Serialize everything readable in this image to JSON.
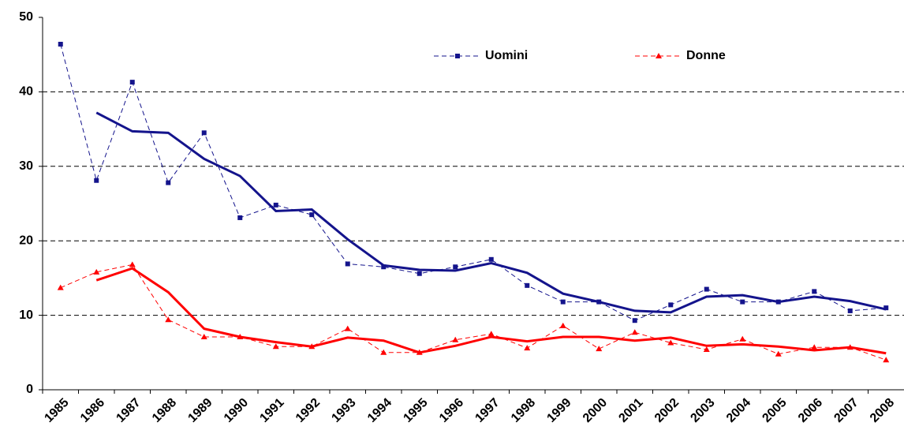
{
  "chart_data": {
    "type": "line",
    "categories": [
      "1985",
      "1986",
      "1987",
      "1988",
      "1989",
      "1990",
      "1991",
      "1992",
      "1993",
      "1994",
      "1995",
      "1996",
      "1997",
      "1998",
      "1999",
      "2000",
      "2001",
      "2002",
      "2003",
      "2004",
      "2005",
      "2006",
      "2007",
      "2008"
    ],
    "series": [
      {
        "name": "Uomini",
        "color": "#14148c",
        "marker": "square",
        "line_style": "dashed",
        "values": [
          46.4,
          28.1,
          41.3,
          27.8,
          34.5,
          23.1,
          24.8,
          23.5,
          16.9,
          16.5,
          15.6,
          16.5,
          17.5,
          14.0,
          11.8,
          11.8,
          9.3,
          11.4,
          13.5,
          11.8,
          11.8,
          13.2,
          10.6,
          11.0
        ]
      },
      {
        "name": "Donne",
        "color": "#ff0000",
        "marker": "triangle",
        "line_style": "dashed",
        "values": [
          13.7,
          15.8,
          16.8,
          9.4,
          7.1,
          7.1,
          5.8,
          5.8,
          8.2,
          5.0,
          5.0,
          6.7,
          7.5,
          5.6,
          8.6,
          5.5,
          7.7,
          6.3,
          5.4,
          6.8,
          4.8,
          5.7,
          5.7,
          4.0
        ]
      },
      {
        "color": "#14148c",
        "line_style": "solid",
        "values": [
          null,
          37.2,
          34.7,
          34.5,
          31.0,
          28.7,
          24.0,
          24.2,
          20.2,
          16.7,
          16.1,
          16.0,
          17.0,
          15.7,
          12.9,
          11.8,
          10.6,
          10.4,
          12.5,
          12.7,
          11.8,
          12.5,
          11.9,
          10.8
        ]
      },
      {
        "color": "#ff0000",
        "line_style": "solid",
        "values": [
          null,
          14.7,
          16.3,
          13.1,
          8.2,
          7.1,
          6.4,
          5.8,
          7.0,
          6.6,
          5.0,
          5.9,
          7.1,
          6.5,
          7.1,
          7.1,
          6.6,
          7.0,
          5.9,
          6.1,
          5.8,
          5.3,
          5.7,
          4.9
        ]
      }
    ],
    "ylim": [
      0,
      50
    ],
    "yticks": [
      0,
      10,
      20,
      30,
      40,
      50
    ],
    "grid": true,
    "legend": "top"
  }
}
